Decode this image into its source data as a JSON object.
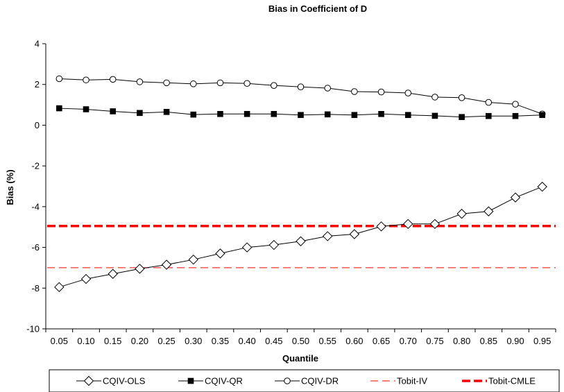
{
  "chart_data": {
    "type": "line",
    "title": "Bias in Coefficient of D",
    "xlabel": "Quantile",
    "ylabel": "Bias (%)",
    "ylim": [
      -10,
      4
    ],
    "yticks": [
      "4",
      "2",
      "0",
      "-2",
      "-4",
      "-6",
      "-8",
      "-10"
    ],
    "ytick_values": [
      4,
      2,
      0,
      -2,
      -4,
      -6,
      -8,
      -10
    ],
    "categories": [
      "0.05",
      "0.10",
      "0.15",
      "0.20",
      "0.25",
      "0.30",
      "0.35",
      "0.40",
      "0.45",
      "0.50",
      "0.55",
      "0.60",
      "0.65",
      "0.70",
      "0.75",
      "0.80",
      "0.85",
      "0.90",
      "0.95"
    ],
    "grid": false,
    "legend_position": "bottom",
    "series": [
      {
        "name": "CQIV-OLS",
        "marker": "diamond-open",
        "line_style": "solid",
        "color": "#000000",
        "values": [
          -7.95,
          -7.55,
          -7.3,
          -7.05,
          -6.85,
          -6.6,
          -6.3,
          -6.0,
          -5.88,
          -5.7,
          -5.45,
          -5.35,
          -4.97,
          -4.85,
          -4.85,
          -4.35,
          -4.23,
          -3.55,
          -3.02
        ]
      },
      {
        "name": "CQIV-QR",
        "marker": "square-filled",
        "line_style": "solid",
        "color": "#000000",
        "values": [
          0.83,
          0.78,
          0.68,
          0.6,
          0.65,
          0.52,
          0.55,
          0.55,
          0.55,
          0.5,
          0.53,
          0.5,
          0.55,
          0.5,
          0.46,
          0.4,
          0.45,
          0.45,
          0.5
        ]
      },
      {
        "name": "CQIV-DR",
        "marker": "circle-open",
        "line_style": "solid",
        "color": "#000000",
        "values": [
          2.28,
          2.22,
          2.25,
          2.13,
          2.08,
          2.03,
          2.08,
          2.05,
          1.95,
          1.88,
          1.82,
          1.65,
          1.63,
          1.58,
          1.38,
          1.35,
          1.12,
          1.03,
          0.55
        ]
      },
      {
        "name": "Tobit-IV",
        "marker": "none",
        "line_style": "dashed-thin",
        "color": "#ff0000",
        "values": [
          -7.0,
          -7.0,
          -7.0,
          -7.0,
          -7.0,
          -7.0,
          -7.0,
          -7.0,
          -7.0,
          -7.0,
          -7.0,
          -7.0,
          -7.0,
          -7.0,
          -7.0,
          -7.0,
          -7.0,
          -7.0,
          -7.0
        ]
      },
      {
        "name": "Tobit-CMLE",
        "marker": "none",
        "line_style": "dashed-thick",
        "color": "#ff0000",
        "values": [
          -4.95,
          -4.95,
          -4.95,
          -4.95,
          -4.95,
          -4.95,
          -4.95,
          -4.95,
          -4.95,
          -4.95,
          -4.95,
          -4.95,
          -4.95,
          -4.95,
          -4.95,
          -4.95,
          -4.95,
          -4.95,
          -4.95
        ]
      }
    ]
  }
}
